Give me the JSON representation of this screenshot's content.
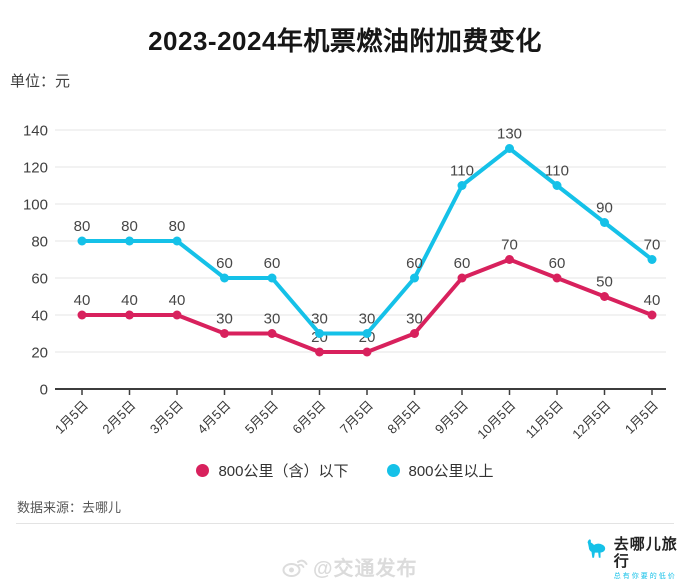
{
  "title": "2023-2024年机票燃油附加费变化",
  "unit_label": "单位：元",
  "chart_data": {
    "type": "line",
    "categories": [
      "1月5日",
      "2月5日",
      "3月5日",
      "4月5日",
      "5月5日",
      "6月5日",
      "7月5日",
      "8月5日",
      "9月5日",
      "10月5日",
      "11月5日",
      "12月5日",
      "1月5日"
    ],
    "series": [
      {
        "name": "800公里（含）以下",
        "color": "#d8215d",
        "values": [
          40,
          40,
          40,
          30,
          30,
          20,
          20,
          30,
          60,
          70,
          60,
          50,
          40
        ]
      },
      {
        "name": "800公里以上",
        "color": "#15c1e8",
        "values": [
          80,
          80,
          80,
          60,
          60,
          30,
          30,
          60,
          110,
          130,
          110,
          90,
          70
        ]
      }
    ],
    "title": "2023-2024年机票燃油附加费变化",
    "xlabel": "",
    "ylabel": "单位：元",
    "ylim": [
      0,
      140
    ],
    "ytick_step": 20,
    "grid": true,
    "legend_position": "bottom",
    "data_labels": true
  },
  "source_note": "数据来源：去哪儿",
  "watermark": {
    "text": "@交通发布"
  },
  "logo": {
    "brand": "去哪儿旅行",
    "slogan": "总有你要的低价",
    "color": "#15c1e8"
  },
  "colors": {
    "series_below_800": "#d8215d",
    "series_above_800": "#15c1e8",
    "gridline": "#e4e4e4",
    "axis": "#3c3c3c",
    "label_text": "#474747"
  }
}
